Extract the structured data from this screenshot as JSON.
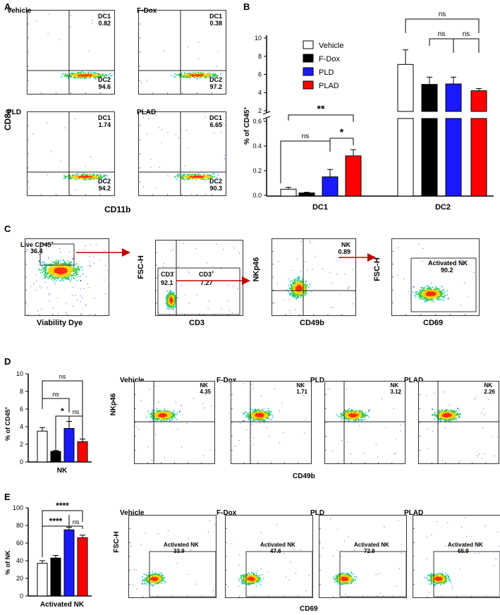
{
  "panels": {
    "A": "A",
    "B": "B",
    "C": "C",
    "D": "D",
    "E": "E"
  },
  "panelA": {
    "xaxis": "CD11b",
    "yaxis": "CD8a",
    "plots": [
      {
        "name": "Vehicle",
        "q1": "DC1",
        "v1": "0.82",
        "q2": "DC2",
        "v2": "94.6"
      },
      {
        "name": "F-Dox",
        "q1": "DC1",
        "v1": "0.38",
        "q2": "DC2",
        "v2": "97.2"
      },
      {
        "name": "PLD",
        "q1": "DC1",
        "v1": "1.74",
        "q2": "DC2",
        "v2": "94.2"
      },
      {
        "name": "PLAD",
        "q1": "DC1",
        "v1": "6.65",
        "q2": "DC2",
        "v2": "90.3"
      }
    ]
  },
  "panelB": {
    "ylabel": "% of CD45",
    "ylabel_sup": "+",
    "legend": [
      "Vehicle",
      "F-Dox",
      "PLD",
      "PLAD"
    ],
    "upper_ticks": [
      "10",
      "8",
      "6",
      "4",
      "2"
    ],
    "lower_ticks": [
      "0.6",
      "0.4",
      "0.2",
      "0.0"
    ],
    "groups": [
      "DC1",
      "DC2"
    ],
    "sig": {
      "dc1_vehicle_plad": "**",
      "dc1_vehicle_pld": "ns",
      "dc1_pld_plad": "*",
      "dc2_vehicle_plad": "ns",
      "dc2_fdox_pld": "ns",
      "dc2_pld_plad": "ns"
    }
  },
  "chart_data": [
    {
      "type": "bar",
      "title": "",
      "ylabel": "% of CD45+",
      "categories": [
        "DC1",
        "DC2"
      ],
      "series": [
        {
          "name": "Vehicle",
          "color": "#ffffff",
          "values": [
            0.05,
            7.1
          ],
          "errors": [
            0.015,
            1.6
          ]
        },
        {
          "name": "F-Dox",
          "color": "#000000",
          "values": [
            0.02,
            4.9
          ],
          "errors": [
            0.005,
            0.8
          ]
        },
        {
          "name": "PLD",
          "color": "#1a1aff",
          "values": [
            0.15,
            4.95
          ],
          "errors": [
            0.06,
            0.75
          ]
        },
        {
          "name": "PLAD",
          "color": "#ff0000",
          "values": [
            0.32,
            4.2
          ],
          "errors": [
            0.05,
            0.25
          ]
        }
      ],
      "ylim_lower": [
        0,
        0.6
      ],
      "ylim_upper": [
        2,
        10
      ]
    },
    {
      "type": "bar",
      "ylabel": "% of CD45+",
      "categories": [
        "NK"
      ],
      "series": [
        {
          "name": "Vehicle",
          "color": "#ffffff",
          "values": [
            3.5
          ],
          "errors": [
            0.4
          ]
        },
        {
          "name": "F-Dox",
          "color": "#000000",
          "values": [
            1.2
          ],
          "errors": [
            0.1
          ]
        },
        {
          "name": "PLD",
          "color": "#1a1aff",
          "values": [
            3.8
          ],
          "errors": [
            0.8
          ]
        },
        {
          "name": "PLAD",
          "color": "#ff0000",
          "values": [
            2.3
          ],
          "errors": [
            0.3
          ]
        }
      ],
      "ylim": [
        0,
        10
      ],
      "yticks": [
        "10",
        "8",
        "6",
        "4",
        "2",
        "0"
      ]
    },
    {
      "type": "bar",
      "ylabel": "% of NK",
      "categories": [
        "Activated NK"
      ],
      "series": [
        {
          "name": "Vehicle",
          "color": "#ffffff",
          "values": [
            37
          ],
          "errors": [
            3
          ]
        },
        {
          "name": "F-Dox",
          "color": "#000000",
          "values": [
            43
          ],
          "errors": [
            3
          ]
        },
        {
          "name": "PLD",
          "color": "#1a1aff",
          "values": [
            75
          ],
          "errors": [
            3
          ]
        },
        {
          "name": "PLAD",
          "color": "#ff0000",
          "values": [
            66
          ],
          "errors": [
            3
          ]
        }
      ],
      "ylim": [
        0,
        100
      ],
      "yticks": [
        "100",
        "80",
        "60",
        "40",
        "20",
        "0"
      ]
    }
  ],
  "panelC": {
    "p1": {
      "x": "Viability Dye",
      "y": "CD45",
      "gate": "Live CD45",
      "gate_sup": "+",
      "val": "36.4"
    },
    "p2": {
      "x": "CD3",
      "y": "FSC-H",
      "gl": "CD3",
      "gl_sup": "-",
      "gl_val": "92.1",
      "gr": "CD3",
      "gr_sup": "+",
      "gr_val": "7.27"
    },
    "p3": {
      "x": "CD49b",
      "y": "NKp46",
      "gate": "NK",
      "val": "0.89"
    },
    "p4": {
      "x": "CD69",
      "y": "FSC-H",
      "gate": "Activated NK",
      "val": "90.2"
    }
  },
  "panelD": {
    "ylabel": "% of CD45",
    "ylabel_sup": "+",
    "xlabel": "NK",
    "sig": [
      "ns",
      "ns",
      "*",
      "ns"
    ],
    "flow_x": "CD49b",
    "flow_y": "NKp46",
    "plots": [
      {
        "name": "Vehicle",
        "gate": "NK",
        "val": "4.35"
      },
      {
        "name": "F-Dox",
        "gate": "NK",
        "val": "1.71"
      },
      {
        "name": "PLD",
        "gate": "NK",
        "val": "3.12"
      },
      {
        "name": "PLAD",
        "gate": "NK",
        "val": "2.26"
      }
    ]
  },
  "panelE": {
    "ylabel": "% of NK",
    "xlabel": "Activated NK",
    "sig": [
      "****",
      "****",
      "ns"
    ],
    "flow_x": "CD69",
    "flow_y": "FSC-H",
    "plots": [
      {
        "name": "Vehicle",
        "gate": "Activated  NK",
        "val": "33.9"
      },
      {
        "name": "F-Dox",
        "gate": "Activated  NK",
        "val": "47.6"
      },
      {
        "name": "PLD",
        "gate": "Activated  NK",
        "val": "72.8"
      },
      {
        "name": "PLAD",
        "gate": "Activated  NK",
        "val": "65.9"
      }
    ]
  },
  "colors": {
    "vehicle": "#ffffff",
    "fdox": "#000000",
    "pld": "#1a1aff",
    "plad": "#ff0000",
    "arrow": "#c00000"
  }
}
